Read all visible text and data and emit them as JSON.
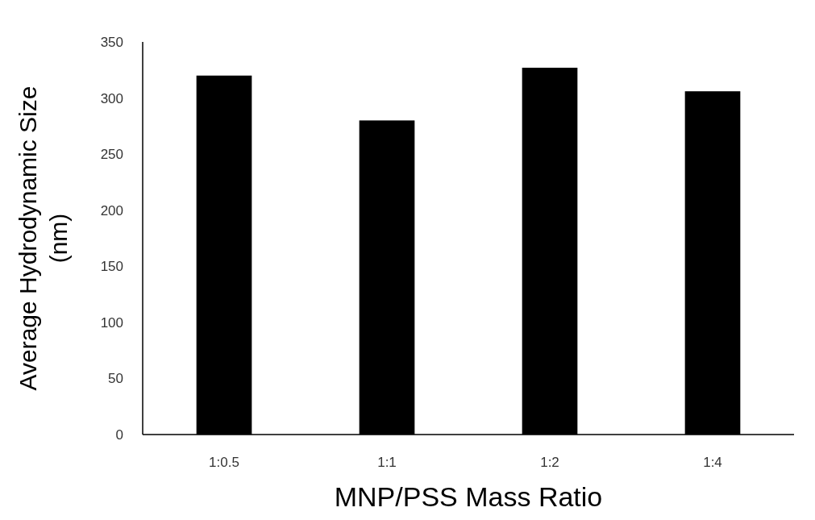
{
  "chart_data": {
    "type": "bar",
    "xlabel": "MNP/PSS Mass Ratio",
    "ylabel": "Average Hydrodynamic Size (nm)",
    "categories": [
      "1:0.5",
      "1:1",
      "1:2",
      "1:4"
    ],
    "values": [
      320,
      280,
      327,
      306
    ],
    "color": "#000000",
    "ylim": [
      0,
      350
    ],
    "yticks": [
      0,
      50,
      100,
      150,
      200,
      250,
      300,
      350
    ],
    "grid": false
  }
}
